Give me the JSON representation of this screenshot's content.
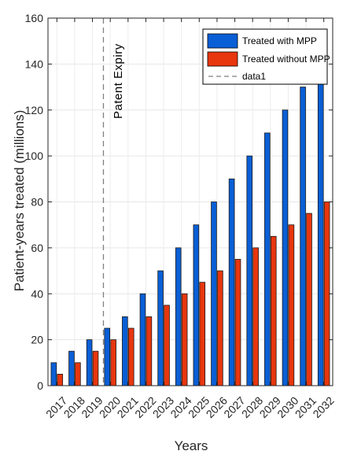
{
  "chart_data": {
    "type": "bar",
    "xlabel": "Years",
    "ylabel": "Patient-years treated (millions)",
    "categories": [
      "2017",
      "2018",
      "2019",
      "2020",
      "2021",
      "2022",
      "2023",
      "2024",
      "2025",
      "2026",
      "2027",
      "2028",
      "2029",
      "2030",
      "2031",
      "2032"
    ],
    "series": [
      {
        "name": "Treated with MPP",
        "color": "#0a5fd6",
        "values": [
          10,
          15,
          20,
          25,
          30,
          40,
          50,
          60,
          70,
          80,
          90,
          100,
          110,
          120,
          130,
          140
        ]
      },
      {
        "name": "Treated without MPP",
        "color": "#e8360e",
        "values": [
          5,
          10,
          15,
          20,
          25,
          30,
          35,
          40,
          45,
          50,
          55,
          60,
          65,
          70,
          75,
          80
        ]
      }
    ],
    "reference_line": {
      "name": "data1",
      "category": "2020",
      "style": "dashed",
      "color": "#808080"
    },
    "annotation": {
      "text": "Patent Expiry",
      "category": "2020",
      "orientation": "vertical"
    },
    "ylim": [
      0,
      160
    ],
    "yticks": [
      0,
      20,
      40,
      60,
      80,
      100,
      120,
      140,
      160
    ],
    "grid": true,
    "legend_position": "top-right"
  }
}
